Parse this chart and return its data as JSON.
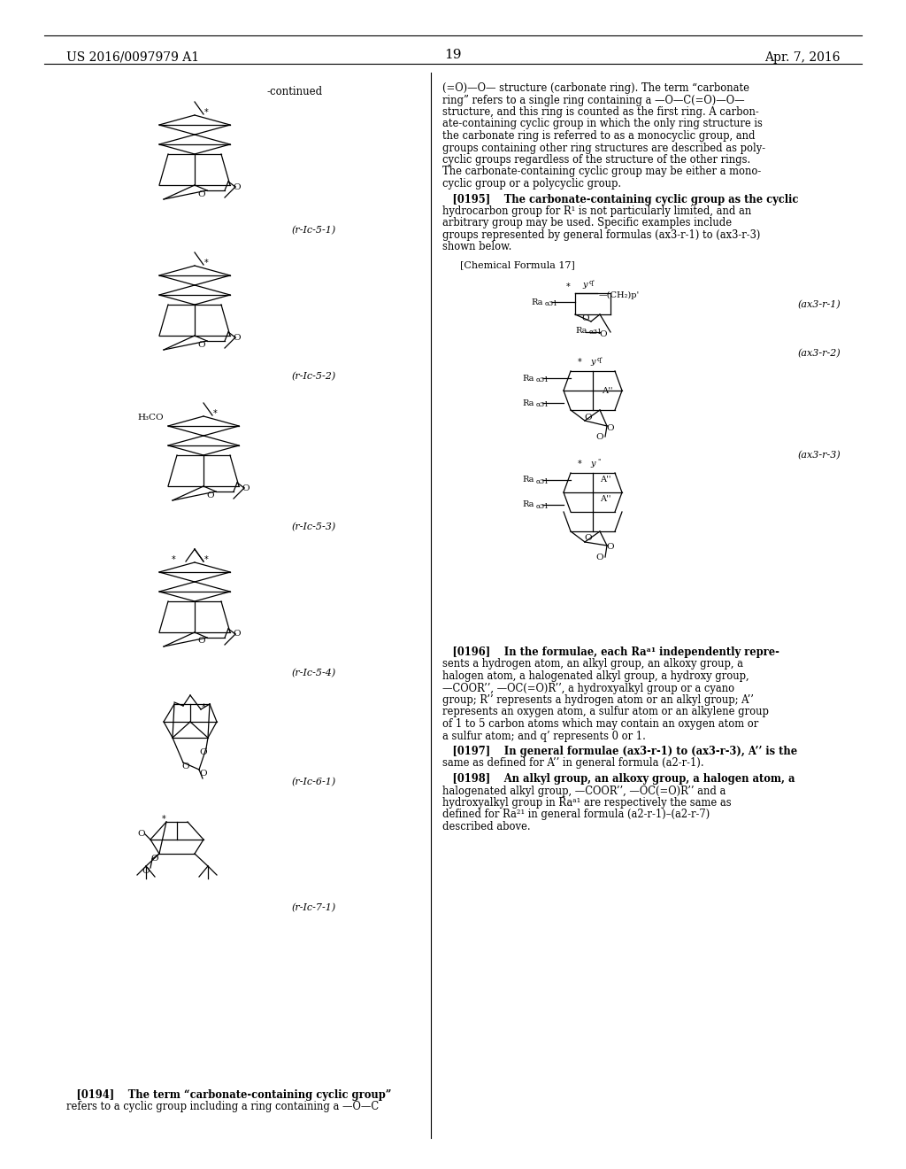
{
  "page_number": "19",
  "patent_number": "US 2016/0097979 A1",
  "patent_date": "Apr. 7, 2016",
  "background_color": "#ffffff",
  "text_color": "#000000",
  "continued_label": "-continued",
  "chemical_formula_label": "[Chemical Formula 17]",
  "left_labels": [
    "(r-Ic-5-1)",
    "(r-Ic-5-2)",
    "(r-Ic-5-3)",
    "(r-Ic-5-4)",
    "(r-Ic-6-1)",
    "(r-Ic-7-1)"
  ],
  "right_labels": [
    "(ax3-r-1)",
    "(ax3-r-2)",
    "(ax3-r-3)"
  ]
}
